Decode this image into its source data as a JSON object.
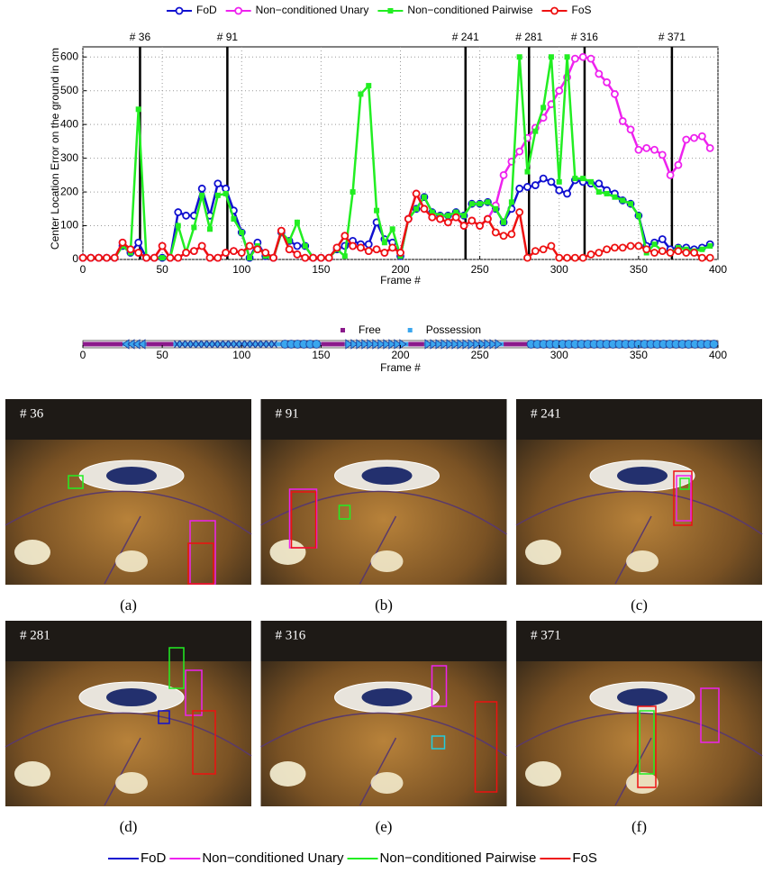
{
  "chart_data": [
    {
      "type": "line",
      "xlabel": "Frame #",
      "ylabel": "Center Location Error on the ground in cm",
      "xlim": [
        0,
        400
      ],
      "xticks": [
        0,
        50,
        100,
        150,
        200,
        250,
        300,
        350,
        400
      ],
      "ylim": [
        0,
        630
      ],
      "yticks": [
        0,
        100,
        200,
        300,
        400,
        500,
        600
      ],
      "grid": true,
      "legend": "top",
      "x": [
        0,
        5,
        10,
        15,
        20,
        25,
        30,
        35,
        40,
        45,
        50,
        55,
        60,
        65,
        70,
        75,
        80,
        85,
        90,
        95,
        100,
        105,
        110,
        115,
        120,
        125,
        130,
        135,
        140,
        145,
        150,
        155,
        160,
        165,
        170,
        175,
        180,
        185,
        190,
        195,
        200,
        205,
        210,
        215,
        220,
        225,
        230,
        235,
        240,
        245,
        250,
        255,
        260,
        265,
        270,
        275,
        280,
        285,
        290,
        295,
        300,
        305,
        310,
        315,
        320,
        325,
        330,
        335,
        340,
        345,
        350,
        355,
        360,
        365,
        370,
        375,
        380,
        385,
        390,
        395
      ],
      "series": [
        {
          "name": "FoD",
          "color": "#1010d0",
          "marker": "o",
          "values": [
            5,
            5,
            5,
            5,
            5,
            40,
            20,
            50,
            5,
            5,
            5,
            5,
            140,
            130,
            130,
            210,
            130,
            225,
            210,
            145,
            80,
            5,
            50,
            10,
            5,
            80,
            55,
            40,
            40,
            5,
            5,
            5,
            30,
            40,
            55,
            45,
            45,
            110,
            60,
            50,
            10,
            120,
            150,
            185,
            140,
            130,
            130,
            140,
            130,
            165,
            165,
            170,
            150,
            110,
            150,
            210,
            215,
            220,
            240,
            230,
            205,
            195,
            235,
            230,
            225,
            225,
            205,
            195,
            175,
            165,
            130,
            40,
            50,
            60,
            30,
            35,
            35,
            30,
            35,
            45
          ]
        },
        {
          "name": "Non−conditioned Unary",
          "color": "#ee22ee",
          "marker": "o",
          "values": [
            5,
            5,
            5,
            5,
            5,
            50,
            30,
            20,
            5,
            5,
            40,
            5,
            5,
            20,
            25,
            40,
            5,
            5,
            20,
            25,
            20,
            40,
            30,
            20,
            5,
            85,
            30,
            15,
            5,
            5,
            5,
            5,
            35,
            70,
            40,
            35,
            25,
            30,
            20,
            35,
            20,
            120,
            195,
            150,
            125,
            120,
            110,
            125,
            100,
            115,
            100,
            120,
            160,
            250,
            290,
            320,
            360,
            390,
            420,
            460,
            500,
            540,
            595,
            600,
            595,
            550,
            525,
            490,
            410,
            385,
            325,
            330,
            325,
            310,
            250,
            280,
            355,
            360,
            365,
            330
          ]
        },
        {
          "name": "Non−conditioned Pairwise",
          "color": "#22ee22",
          "marker": "s",
          "values": [
            5,
            5,
            5,
            5,
            5,
            40,
            20,
            445,
            5,
            5,
            5,
            5,
            100,
            20,
            95,
            190,
            90,
            190,
            195,
            120,
            80,
            5,
            40,
            10,
            5,
            80,
            55,
            110,
            40,
            5,
            5,
            5,
            30,
            10,
            200,
            490,
            515,
            145,
            50,
            90,
            10,
            120,
            150,
            185,
            140,
            130,
            130,
            140,
            130,
            165,
            165,
            170,
            150,
            110,
            170,
            600,
            260,
            380,
            450,
            600,
            230,
            600,
            240,
            240,
            230,
            200,
            195,
            185,
            175,
            165,
            130,
            20,
            45,
            25,
            20,
            35,
            30,
            25,
            30,
            40
          ]
        },
        {
          "name": "FoS",
          "color": "#ee1111",
          "marker": "o",
          "values": [
            5,
            5,
            5,
            5,
            5,
            50,
            30,
            20,
            5,
            5,
            40,
            5,
            5,
            20,
            25,
            40,
            5,
            5,
            20,
            25,
            20,
            40,
            30,
            20,
            5,
            85,
            30,
            15,
            5,
            5,
            5,
            5,
            35,
            70,
            40,
            35,
            25,
            30,
            20,
            35,
            20,
            120,
            195,
            150,
            125,
            120,
            110,
            125,
            100,
            115,
            100,
            120,
            80,
            70,
            75,
            140,
            5,
            25,
            30,
            40,
            5,
            5,
            5,
            5,
            15,
            20,
            30,
            35,
            35,
            40,
            40,
            30,
            20,
            25,
            20,
            25,
            20,
            20,
            5,
            5
          ]
        }
      ],
      "events": [
        {
          "frame": 36,
          "label": "# 36"
        },
        {
          "frame": 91,
          "label": "# 91"
        },
        {
          "frame": 241,
          "label": "# 241"
        },
        {
          "frame": 281,
          "label": "# 281"
        },
        {
          "frame": 316,
          "label": "# 316"
        },
        {
          "frame": 371,
          "label": "# 371"
        }
      ]
    },
    {
      "type": "timeline",
      "xlabel": "Frame #",
      "xlim": [
        0,
        400
      ],
      "xticks": [
        0,
        50,
        100,
        150,
        200,
        250,
        300,
        350,
        400
      ],
      "states": [
        {
          "name": "Free",
          "color": "#8b1a8b"
        },
        {
          "name": "Possession",
          "color": "#3aa6ee"
        }
      ],
      "segments": [
        {
          "start": 0,
          "end": 25,
          "state": "Free"
        },
        {
          "start": 25,
          "end": 40,
          "state": "Possession",
          "marker": "<"
        },
        {
          "start": 40,
          "end": 57,
          "state": "Free"
        },
        {
          "start": 57,
          "end": 125,
          "state": "Possession",
          "marker": "x"
        },
        {
          "start": 125,
          "end": 150,
          "state": "Possession",
          "marker": "o"
        },
        {
          "start": 150,
          "end": 165,
          "state": "Free"
        },
        {
          "start": 165,
          "end": 205,
          "state": "Possession",
          "marker": ">"
        },
        {
          "start": 205,
          "end": 215,
          "state": "Free"
        },
        {
          "start": 215,
          "end": 265,
          "state": "Possession",
          "marker": ">"
        },
        {
          "start": 265,
          "end": 280,
          "state": "Free"
        },
        {
          "start": 280,
          "end": 400,
          "state": "Possession",
          "marker": "o"
        }
      ]
    }
  ],
  "panels": [
    {
      "label": "# 36",
      "caption": "(a)"
    },
    {
      "label": "# 91",
      "caption": "(b)"
    },
    {
      "label": "# 241",
      "caption": "(c)"
    },
    {
      "label": "# 281",
      "caption": "(d)"
    },
    {
      "label": "# 316",
      "caption": "(e)"
    },
    {
      "label": "# 371",
      "caption": "(f)"
    }
  ]
}
